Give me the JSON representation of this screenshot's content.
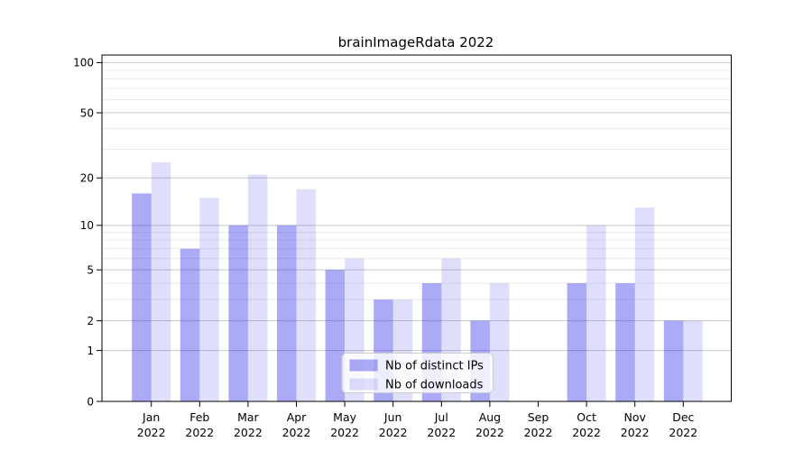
{
  "title": "brainImageRdata 2022",
  "chart_data": {
    "type": "bar",
    "title": "brainImageRdata 2022",
    "categories": [
      "Jan",
      "Feb",
      "Mar",
      "Apr",
      "May",
      "Jun",
      "Jul",
      "Aug",
      "Sep",
      "Oct",
      "Nov",
      "Dec"
    ],
    "x_year": "2022",
    "series": [
      {
        "name": "Nb of distinct IPs",
        "color": "#1919e6",
        "alpha": 0.37,
        "solid_hex": "#a8a8f4",
        "values": [
          16,
          7,
          10,
          10,
          5,
          3,
          4,
          2,
          0,
          4,
          4,
          2
        ]
      },
      {
        "name": "Nb of downloads",
        "color": "#1919e6",
        "alpha": 0.14,
        "solid_hex": "#dddcfa",
        "values": [
          25,
          15,
          21,
          17,
          6,
          3,
          6,
          4,
          0,
          10,
          13,
          2
        ]
      }
    ],
    "yscale": "log1p",
    "ylim": [
      0,
      111
    ],
    "y_ticks": [
      0,
      1,
      2,
      5,
      10,
      20,
      50,
      100
    ],
    "y_minor_gridlines": [
      3,
      4,
      6,
      7,
      8,
      9,
      30,
      40,
      60,
      70,
      80,
      90
    ],
    "xlabel": "",
    "ylabel": "",
    "grid": true,
    "legend_position": "lower center"
  },
  "legend": {
    "items": [
      {
        "label": "Nb of distinct IPs"
      },
      {
        "label": "Nb of downloads"
      }
    ]
  },
  "colors": {
    "background": "#ffffff",
    "major_grid": "#c9c9c9",
    "minor_grid": "#e9e9e9",
    "axis": "#000000",
    "legend_border": "#cccccc",
    "legend_background": "rgba(255,255,255,0.8)"
  }
}
